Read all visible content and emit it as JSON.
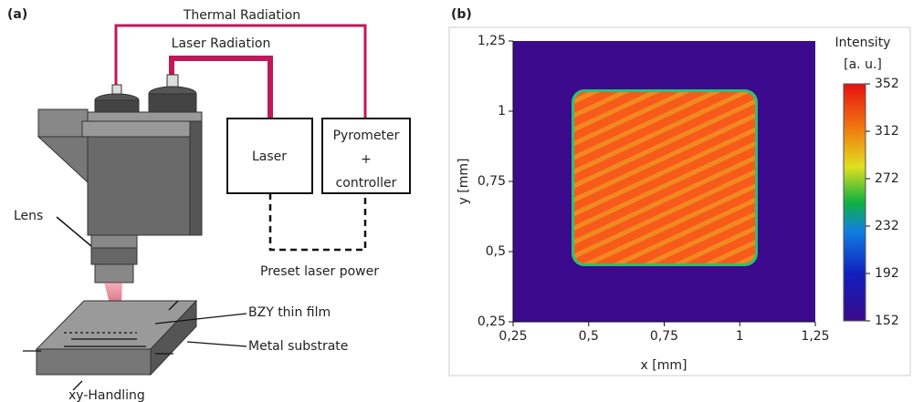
{
  "panel_a": {
    "label": "(a)",
    "labels": {
      "thermal": "Thermal Radiation",
      "laser_radiation": "Laser Radiation",
      "laser": "Laser",
      "pyrometer": [
        "Pyrometer",
        "+",
        "controller"
      ],
      "preset": "Preset laser power",
      "lens": "Lens",
      "film": "BZY thin film",
      "substrate": "Metal substrate",
      "handling": "xy-Handling"
    }
  },
  "panel_b": {
    "label": "(b)",
    "chart_data": {
      "type": "heatmap",
      "xlabel": "x [mm]",
      "ylabel": "y [mm]",
      "xlim": [
        0.25,
        1.25
      ],
      "ylim": [
        0.25,
        1.25
      ],
      "xticks": [
        {
          "value": 0.25,
          "label": "0,25"
        },
        {
          "value": 0.5,
          "label": "0,5"
        },
        {
          "value": 0.75,
          "label": "0,75"
        },
        {
          "value": 1,
          "label": "1"
        },
        {
          "value": 1.25,
          "label": "1,25"
        }
      ],
      "yticks": [
        {
          "value": 0.25,
          "label": "0,25"
        },
        {
          "value": 0.5,
          "label": "0,5"
        },
        {
          "value": 0.75,
          "label": "0,75"
        },
        {
          "value": 1,
          "label": "1"
        },
        {
          "value": 1.25,
          "label": "1,25"
        }
      ],
      "colorbar": {
        "title": [
          "Intensity",
          "[a. u.]"
        ],
        "lim": [
          152,
          352
        ],
        "ticks": [
          152,
          192,
          232,
          272,
          312,
          352
        ]
      }
    }
  }
}
